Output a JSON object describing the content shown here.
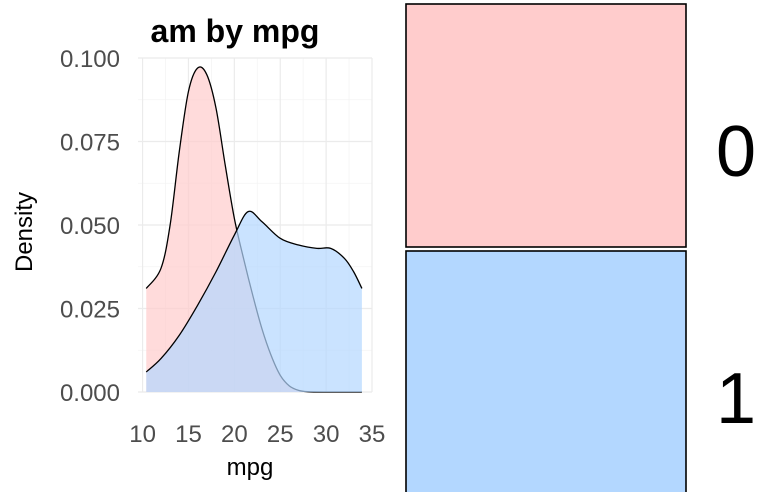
{
  "chart_data": [
    {
      "type": "area",
      "title": "am by mpg",
      "xlabel": "mpg",
      "ylabel": "Density",
      "xlim": [
        9.5,
        35
      ],
      "ylim": [
        0,
        0.1
      ],
      "x_ticks": [
        "10",
        "15",
        "20",
        "25",
        "30",
        "35"
      ],
      "y_ticks": [
        "0.000",
        "0.025",
        "0.050",
        "0.075",
        "0.100"
      ],
      "grid": true,
      "legend": "none",
      "series": [
        {
          "name": "0",
          "color": "#ffcccc",
          "points": [
            [
              10.4,
              0.031
            ],
            [
              12,
              0.037
            ],
            [
              13,
              0.05
            ],
            [
              14,
              0.072
            ],
            [
              15,
              0.09
            ],
            [
              16,
              0.097
            ],
            [
              17,
              0.095
            ],
            [
              18,
              0.085
            ],
            [
              19,
              0.068
            ],
            [
              20,
              0.052
            ],
            [
              21,
              0.04
            ],
            [
              22,
              0.029
            ],
            [
              23,
              0.019
            ],
            [
              24,
              0.011
            ],
            [
              25,
              0.005
            ],
            [
              26,
              0.0018
            ],
            [
              27,
              0.0005
            ],
            [
              28,
              0.0001
            ],
            [
              30,
              0
            ],
            [
              33.9,
              0
            ]
          ]
        },
        {
          "name": "1",
          "color": "#b3d7ff",
          "points": [
            [
              10.4,
              0.006
            ],
            [
              12,
              0.01
            ],
            [
              14,
              0.017
            ],
            [
              16,
              0.026
            ],
            [
              18,
              0.036
            ],
            [
              20,
              0.047
            ],
            [
              21.5,
              0.054
            ],
            [
              23,
              0.051
            ],
            [
              25,
              0.046
            ],
            [
              27,
              0.044
            ],
            [
              29,
              0.043
            ],
            [
              30.5,
              0.043
            ],
            [
              32,
              0.04
            ],
            [
              33,
              0.036
            ],
            [
              33.9,
              0.031
            ]
          ]
        }
      ]
    },
    {
      "type": "bar",
      "categories": [
        "0",
        "1"
      ],
      "colors": [
        "#ffcccc",
        "#b3d7ff"
      ]
    }
  ]
}
